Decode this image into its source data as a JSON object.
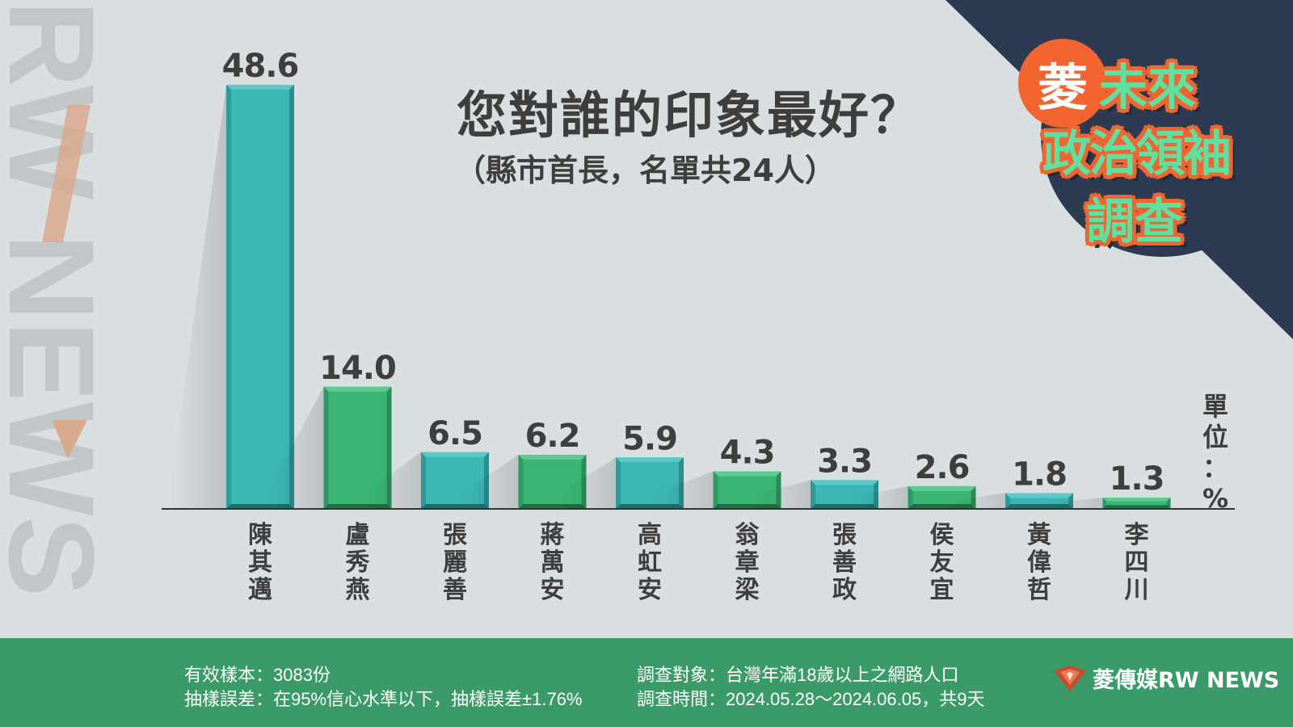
{
  "title": "您對誰的印象最好？",
  "subtitle": "（縣市首長，名單共24人）",
  "unit_chars": [
    "單",
    "位",
    "：",
    "%"
  ],
  "badge": {
    "char": "菱",
    "lines": [
      "未來",
      "政治領袖",
      "調查"
    ]
  },
  "watermark": "RW NEWS",
  "footer": {
    "sample": "有效樣本：3083份",
    "error": "抽樣誤差：在95%信心水準以下，抽樣誤差±1.76%",
    "target": "調查對象：台灣年滿18歲以上之網路人口",
    "period": "調查時間：2024.05.28～2024.06.05，共9天",
    "brand": "菱傳媒RW NEWS"
  },
  "colors": {
    "teal": "#3bb6b5",
    "green": "#3ab575",
    "footer": "#3a9a68",
    "navy": "#2c3a52",
    "orange": "#f26430",
    "text": "#3e3e3e"
  },
  "chart_data": {
    "type": "bar",
    "title": "您對誰的印象最好？",
    "subtitle": "（縣市首長，名單共24人）",
    "unit": "%",
    "categories": [
      "陳其邁",
      "盧秀燕",
      "張麗善",
      "蔣萬安",
      "高虹安",
      "翁章梁",
      "張善政",
      "侯友宜",
      "黃偉哲",
      "李四川"
    ],
    "values": [
      48.6,
      14.0,
      6.5,
      6.2,
      5.9,
      4.3,
      3.3,
      2.6,
      1.8,
      1.3
    ],
    "value_labels": [
      "48.6",
      "14.0",
      "6.5",
      "6.2",
      "5.9",
      "4.3",
      "3.3",
      "2.6",
      "1.8",
      "1.3"
    ],
    "bar_colors": [
      "teal",
      "green",
      "teal",
      "green",
      "teal",
      "green",
      "teal",
      "green",
      "teal",
      "green"
    ],
    "ylim": [
      0,
      48.6
    ],
    "grid": false,
    "legend": "none"
  }
}
